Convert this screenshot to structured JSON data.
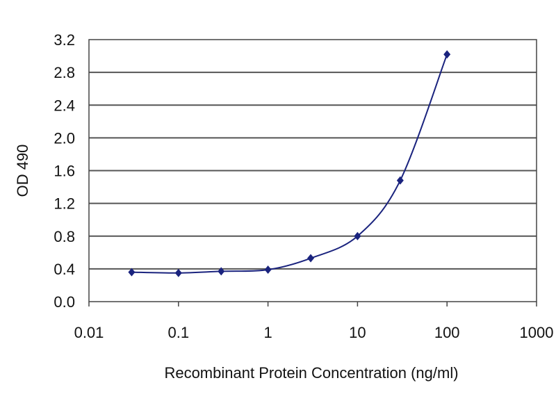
{
  "chart_data": {
    "type": "line",
    "title": "",
    "xlabel": "Recombinant Protein Concentration (ng/ml)",
    "ylabel": "OD 490",
    "x_scale": "log",
    "xlim": [
      0.01,
      1000
    ],
    "ylim": [
      0.0,
      3.2
    ],
    "x_ticks": [
      0.01,
      0.1,
      1,
      10,
      100,
      1000
    ],
    "x_tick_labels": [
      "0.01",
      "0.1",
      "1",
      "10",
      "100",
      "1000"
    ],
    "y_ticks": [
      0.0,
      0.4,
      0.8,
      1.2,
      1.6,
      2.0,
      2.4,
      2.8,
      3.2
    ],
    "y_tick_labels": [
      "0.0",
      "0.4",
      "0.8",
      "1.2",
      "1.6",
      "2.0",
      "2.4",
      "2.8",
      "3.2"
    ],
    "grid": "horizontal",
    "legend": "none",
    "series": [
      {
        "x": [
          0.03,
          0.1,
          0.3,
          1,
          3,
          10,
          30,
          100
        ],
        "y": [
          0.36,
          0.35,
          0.37,
          0.39,
          0.53,
          0.8,
          1.48,
          3.02
        ],
        "color": "#1a237e"
      }
    ],
    "colors": {
      "line": "#1a237e",
      "grid": "#555555",
      "axis": "#444444"
    }
  }
}
